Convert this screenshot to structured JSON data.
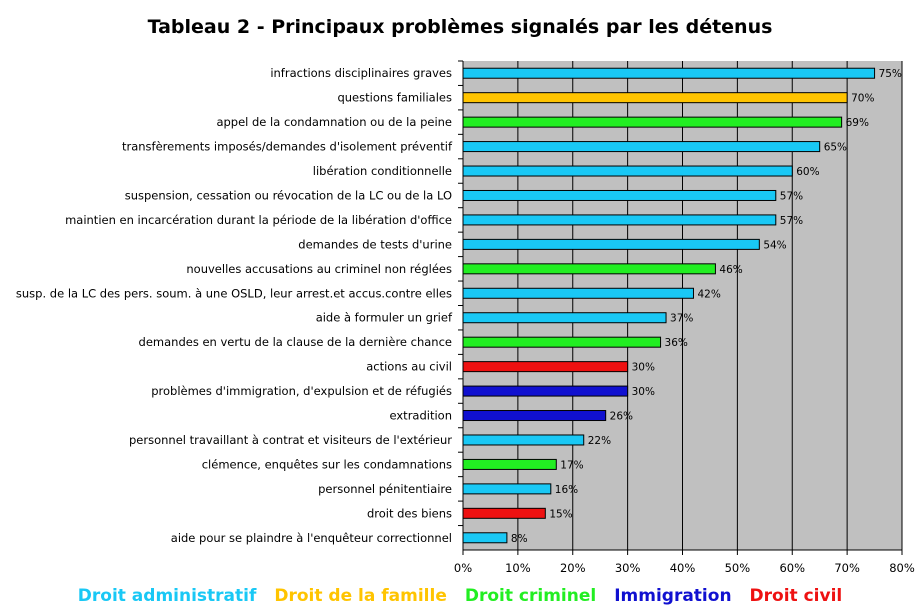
{
  "chart_data": {
    "type": "bar",
    "orientation": "horizontal",
    "title": "Tableau 2 - Principaux problèmes signalés par les détenus",
    "xlabel": "",
    "ylabel": "",
    "xlim": [
      0,
      80
    ],
    "x_ticks": [
      "0%",
      "10%",
      "20%",
      "30%",
      "40%",
      "50%",
      "60%",
      "70%",
      "80%"
    ],
    "grid": true,
    "categories": [
      "infractions disciplinaires graves",
      "questions familiales",
      "appel de la condamnation ou de la peine",
      "transfèrements imposés/demandes d'isolement préventif",
      "libération conditionnelle",
      "suspension, cessation ou révocation de la LC ou de la LO",
      "maintien en incarcération durant la période de la libération d'office",
      "demandes de tests d'urine",
      "nouvelles accusations au criminel non réglées",
      "susp. de la LC des pers. soum. à une OSLD, leur arrest.et accus.contre elles",
      "aide à formuler un grief",
      "demandes en vertu de la clause de la dernière chance",
      "actions au civil",
      "problèmes d'immigration, d'expulsion et de réfugiés",
      "extradition",
      "personnel travaillant à contrat et visiteurs de l'extérieur",
      "clémence, enquêtes sur les condamnations",
      "personnel pénitentiaire",
      "droit des biens",
      "aide pour se plaindre à l'enquêteur correctionnel"
    ],
    "values": [
      75,
      70,
      69,
      65,
      60,
      57,
      57,
      54,
      46,
      42,
      37,
      36,
      30,
      30,
      26,
      22,
      17,
      16,
      15,
      8
    ],
    "value_labels": [
      "75%",
      "70%",
      "69%",
      "65%",
      "60%",
      "57%",
      "57%",
      "54%",
      "46%",
      "42%",
      "37%",
      "36%",
      "30%",
      "30%",
      "26%",
      "22%",
      "17%",
      "16%",
      "15%",
      "8%"
    ],
    "groups": [
      "Droit administratif",
      "Droit de la famille",
      "Droit criminel",
      "Droit administratif",
      "Droit administratif",
      "Droit administratif",
      "Droit administratif",
      "Droit administratif",
      "Droit criminel",
      "Droit administratif",
      "Droit administratif",
      "Droit criminel",
      "Droit civil",
      "Immigration",
      "Immigration",
      "Droit administratif",
      "Droit criminel",
      "Droit administratif",
      "Droit civil",
      "Droit administratif"
    ],
    "legend": [
      {
        "name": "Droit administratif",
        "color": "#19c8f5"
      },
      {
        "name": "Droit de la famille",
        "color": "#ffc400"
      },
      {
        "name": "Droit criminel",
        "color": "#22ee22"
      },
      {
        "name": "Immigration",
        "color": "#1010d0"
      },
      {
        "name": "Droit civil",
        "color": "#ee1111"
      }
    ],
    "legend_placement": "bottom",
    "plot_background": "#c0c0c0"
  }
}
